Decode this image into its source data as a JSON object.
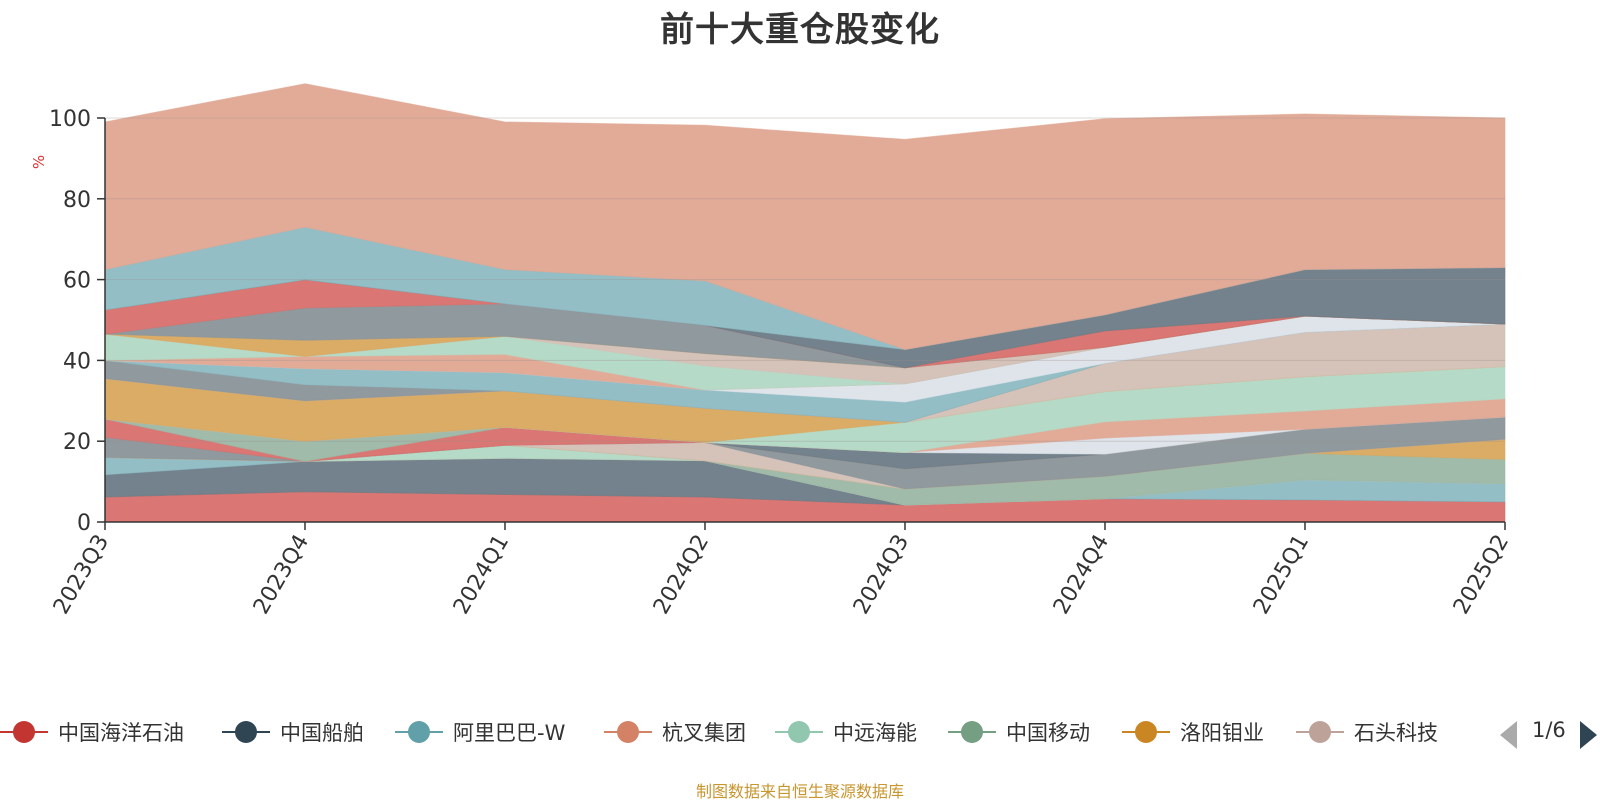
{
  "chart_data": {
    "type": "area",
    "title": "前十大重仓股变化",
    "ylabel": "%",
    "xlabel": "",
    "ylim": [
      0,
      100
    ],
    "yticks": [
      0,
      20,
      40,
      60,
      80,
      100
    ],
    "grid": true,
    "stacked": true,
    "x": [
      "2023Q3",
      "2023Q4",
      "2024Q1",
      "2024Q2",
      "2024Q3",
      "2024Q4",
      "2025Q1",
      "2025Q2"
    ],
    "series": [
      {
        "name": "中国海洋石油",
        "color": "#d86f6c",
        "values": [
          6.2,
          7.5,
          6.8,
          6.2,
          4.2,
          5.8,
          5.5,
          5.0
        ]
      },
      {
        "name": "中国船舶",
        "color": "#6b7b86",
        "values": [
          5.5,
          7.5,
          9.0,
          9.0,
          0.0,
          0.0,
          0.0,
          0.0
        ]
      },
      {
        "name": "阿里巴巴-W",
        "color": "#8dbac3",
        "values": [
          4.3,
          0.0,
          0.0,
          0.0,
          0.0,
          0.0,
          5.0,
          4.5
        ]
      },
      {
        "name": "杭叉集团",
        "color": "#e0a692",
        "values": [
          0.0,
          0.0,
          0.0,
          0.0,
          0.0,
          0.0,
          0.0,
          0.0
        ]
      },
      {
        "name": "中远海能",
        "color": "#b2d8c5",
        "values": [
          0.0,
          0.0,
          3.2,
          0.0,
          0.0,
          0.0,
          0.0,
          0.0
        ]
      },
      {
        "name": "中国移动",
        "color": "#9bb7a5",
        "values": [
          0.0,
          0.0,
          0.0,
          0.0,
          4.0,
          5.5,
          6.5,
          6.0
        ]
      },
      {
        "name": "洛阳钼业",
        "color": "#d9a85e",
        "values": [
          0.0,
          0.0,
          0.0,
          0.0,
          0.0,
          0.0,
          0.0,
          5.0
        ]
      },
      {
        "name": "石头科技",
        "color": "#d3bfb5",
        "values": [
          0.0,
          0.0,
          0.0,
          4.5,
          0.0,
          0.0,
          0.0,
          0.0
        ]
      },
      {
        "name": "",
        "color": "#8a9499",
        "values": [
          5.0,
          0.0,
          0.0,
          0.0,
          5.0,
          5.5,
          6.0,
          5.5
        ]
      },
      {
        "name": "",
        "color": "#d86f6c",
        "values": [
          4.5,
          0.0,
          4.5,
          0.0,
          0.0,
          0.0,
          0.0,
          0.0
        ]
      },
      {
        "name": "",
        "color": "#9bb7a5",
        "values": [
          0.0,
          5.0,
          0.0,
          0.0,
          0.0,
          0.0,
          0.0,
          0.0
        ]
      },
      {
        "name": "",
        "color": "#6b7b86",
        "values": [
          0.0,
          0.0,
          0.0,
          0.0,
          4.0,
          0.0,
          0.0,
          0.0
        ]
      },
      {
        "name": "",
        "color": "#dde3ea",
        "values": [
          0.0,
          0.0,
          0.0,
          0.0,
          0.0,
          4.0,
          0.0,
          0.0
        ]
      },
      {
        "name": "",
        "color": "#e0a692",
        "values": [
          0.0,
          0.0,
          0.0,
          0.0,
          0.0,
          4.0,
          4.5,
          4.5
        ]
      },
      {
        "name": "",
        "color": "#b2d8c5",
        "values": [
          0.0,
          0.0,
          0.0,
          0.0,
          7.5,
          7.5,
          8.5,
          8.0
        ]
      },
      {
        "name": "",
        "color": "#d9a85e",
        "values": [
          10.0,
          10.0,
          9.0,
          8.5,
          0.0,
          0.0,
          0.0,
          0.0
        ]
      },
      {
        "name": "",
        "color": "#d3bfb5",
        "values": [
          0.0,
          0.0,
          0.0,
          0.0,
          0.0,
          7.0,
          11.0,
          10.5
        ]
      },
      {
        "name": "",
        "color": "#8a9499",
        "values": [
          4.5,
          4.0,
          0.0,
          0.0,
          0.0,
          0.0,
          0.0,
          0.0
        ]
      },
      {
        "name": "",
        "color": "#8dbac3",
        "values": [
          0.0,
          4.0,
          4.5,
          4.5,
          5.0,
          0.0,
          0.0,
          0.0
        ]
      },
      {
        "name": "",
        "color": "#dde3ea",
        "values": [
          0.0,
          0.0,
          0.0,
          0.0,
          4.5,
          4.0,
          4.0,
          0.0
        ]
      },
      {
        "name": "",
        "color": "#e0a692",
        "values": [
          0.0,
          3.0,
          4.5,
          0.0,
          0.0,
          0.0,
          0.0,
          0.0
        ]
      },
      {
        "name": "",
        "color": "#b2d8c5",
        "values": [
          6.5,
          0.0,
          4.5,
          6.0,
          0.0,
          0.0,
          0.0,
          0.0
        ]
      },
      {
        "name": "",
        "color": "#d3bfb5",
        "values": [
          0.0,
          0.0,
          0.0,
          3.0,
          4.0,
          0.0,
          0.0,
          0.0
        ]
      },
      {
        "name": "",
        "color": "#d9a85e",
        "values": [
          0.0,
          4.0,
          0.0,
          0.0,
          0.0,
          0.0,
          0.0,
          0.0
        ]
      },
      {
        "name": "",
        "color": "#8a9499",
        "values": [
          0.0,
          8.0,
          8.0,
          7.0,
          0.0,
          0.0,
          0.0,
          0.0
        ]
      },
      {
        "name": "",
        "color": "#d86f6c",
        "values": [
          6.0,
          7.0,
          0.0,
          0.0,
          0.0,
          4.0,
          0.0,
          0.0
        ]
      },
      {
        "name": "",
        "color": "#6b7b86",
        "values": [
          0.0,
          0.0,
          0.0,
          0.0,
          4.5,
          4.0,
          11.5,
          14.0
        ]
      },
      {
        "name": "",
        "color": "#8dbac3",
        "values": [
          10.0,
          13.0,
          8.5,
          11.0,
          0.0,
          0.0,
          0.0,
          0.0
        ]
      },
      {
        "name": "",
        "color": "#e0a692",
        "values": [
          36.5,
          35.5,
          36.5,
          38.5,
          52.0,
          48.5,
          38.5,
          37.0
        ]
      }
    ]
  },
  "legend": {
    "items": [
      {
        "label": "中国海洋石油",
        "color": "#c23531"
      },
      {
        "label": "中国船舶",
        "color": "#2f4554"
      },
      {
        "label": "阿里巴巴-W",
        "color": "#61a0a8"
      },
      {
        "label": "杭叉集团",
        "color": "#d48265"
      },
      {
        "label": "中远海能",
        "color": "#91c7ae"
      },
      {
        "label": "中国移动",
        "color": "#749f83"
      },
      {
        "label": "洛阳钼业",
        "color": "#ca8622"
      },
      {
        "label": "石头科技",
        "color": "#bda29a"
      }
    ],
    "page_indicator": "1/6"
  },
  "source_note": "制图数据来自恒生聚源数据库"
}
